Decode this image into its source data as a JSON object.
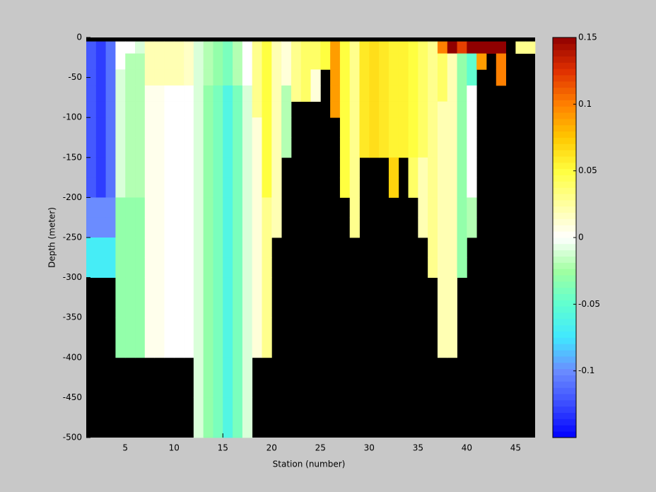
{
  "chart_data": {
    "type": "heatmap",
    "xlabel": "Station (number)",
    "ylabel": "Depth (meter)",
    "xlim": [
      1,
      47
    ],
    "ylim": [
      -500,
      0
    ],
    "xticks": [
      5,
      10,
      15,
      20,
      25,
      30,
      35,
      40,
      45
    ],
    "yticks": [
      0,
      -50,
      -100,
      -150,
      -200,
      -250,
      -300,
      -350,
      -400,
      -450,
      -500
    ],
    "clim": [
      -0.15,
      0.15
    ],
    "cticks": [
      -0.1,
      -0.05,
      0,
      0.05,
      0.1,
      0.15
    ],
    "colormap": [
      "#0000ff",
      "#3a4cff",
      "#6b8cff",
      "#40e8ff",
      "#60ffd0",
      "#a0ffa0",
      "#ffffff",
      "#ffffa0",
      "#ffff40",
      "#ffc800",
      "#ff8000",
      "#e03000",
      "#900000"
    ],
    "missing_color": "#000000",
    "x": [
      1,
      2,
      3,
      4,
      5,
      6,
      7,
      8,
      9,
      10,
      11,
      12,
      13,
      14,
      15,
      16,
      17,
      18,
      19,
      20,
      21,
      22,
      23,
      24,
      25,
      26,
      27,
      28,
      29,
      30,
      31,
      32,
      33,
      34,
      35,
      36,
      37,
      38,
      39,
      40,
      41,
      42,
      43,
      44,
      45,
      46,
      47
    ],
    "depth": [
      0,
      -5,
      -20,
      -40,
      -60,
      -80,
      -100,
      -125,
      -150,
      -175,
      -200,
      -225,
      -250,
      -275,
      -300,
      -350,
      -400,
      -450,
      -500
    ],
    "values": [
      [
        null,
        -0.12,
        -0.12,
        -0.12,
        -0.12,
        -0.12,
        -0.12,
        -0.12,
        -0.12,
        -0.12,
        -0.1,
        -0.1,
        -0.07,
        -0.07,
        null,
        null,
        null,
        null
      ],
      [
        null,
        -0.13,
        -0.13,
        -0.13,
        -0.13,
        -0.13,
        -0.13,
        -0.13,
        -0.13,
        -0.13,
        -0.1,
        -0.1,
        -0.07,
        -0.07,
        null,
        null,
        null,
        null
      ],
      [
        null,
        -0.11,
        -0.11,
        -0.11,
        -0.11,
        -0.11,
        -0.11,
        -0.11,
        -0.11,
        -0.11,
        -0.1,
        -0.1,
        -0.07,
        -0.07,
        null,
        null,
        null,
        null
      ],
      [
        null,
        0,
        0,
        -0.01,
        -0.01,
        -0.01,
        -0.01,
        -0.01,
        -0.01,
        -0.01,
        -0.03,
        -0.03,
        -0.03,
        -0.03,
        -0.03,
        -0.03,
        null,
        null
      ],
      [
        null,
        0,
        -0.02,
        -0.02,
        -0.02,
        -0.02,
        -0.02,
        -0.02,
        -0.02,
        -0.02,
        -0.03,
        -0.03,
        -0.03,
        -0.03,
        -0.03,
        -0.03,
        null,
        null
      ],
      [
        null,
        -0.01,
        -0.02,
        -0.02,
        -0.02,
        -0.02,
        -0.02,
        -0.02,
        -0.02,
        -0.02,
        -0.03,
        -0.03,
        -0.03,
        -0.03,
        -0.03,
        -0.03,
        null,
        null
      ],
      [
        null,
        0.02,
        0.02,
        0.02,
        0.005,
        0.005,
        0.005,
        0.005,
        0.005,
        0.005,
        0.005,
        0.005,
        0.005,
        0.005,
        0.005,
        0.005,
        null,
        null
      ],
      [
        null,
        0.02,
        0.02,
        0.02,
        0.005,
        0.005,
        0.005,
        0.005,
        0.005,
        0.005,
        0.005,
        0.005,
        0.005,
        0.005,
        0.005,
        0.005,
        null,
        null
      ],
      [
        null,
        0.02,
        0.02,
        0.02,
        0,
        0,
        0,
        0,
        0,
        0,
        0,
        0,
        0,
        0,
        0,
        0,
        null,
        null
      ],
      [
        null,
        0.02,
        0.02,
        0.02,
        0,
        0,
        0,
        0,
        0,
        0,
        0,
        0,
        0,
        0,
        0,
        0,
        null,
        null
      ],
      [
        null,
        0.015,
        0.015,
        0.015,
        0,
        0,
        0,
        0,
        0,
        0,
        0,
        0,
        0,
        0,
        0,
        0,
        null,
        null
      ],
      [
        null,
        -0.01,
        -0.01,
        -0.01,
        -0.01,
        -0.01,
        -0.01,
        -0.01,
        -0.01,
        -0.01,
        -0.01,
        -0.01,
        -0.01,
        -0.01,
        -0.01,
        -0.01,
        -0.01,
        -0.01
      ],
      [
        null,
        -0.02,
        -0.02,
        -0.02,
        -0.03,
        -0.03,
        -0.03,
        -0.03,
        -0.03,
        -0.03,
        -0.03,
        -0.03,
        -0.03,
        -0.03,
        -0.03,
        -0.03,
        -0.03,
        -0.03
      ],
      [
        null,
        -0.03,
        -0.03,
        -0.03,
        -0.04,
        -0.04,
        -0.04,
        -0.04,
        -0.04,
        -0.04,
        -0.04,
        -0.04,
        -0.04,
        -0.04,
        -0.04,
        -0.04,
        -0.04,
        -0.04
      ],
      [
        null,
        -0.04,
        -0.04,
        -0.04,
        -0.06,
        -0.06,
        -0.06,
        -0.06,
        -0.06,
        -0.06,
        -0.06,
        -0.06,
        -0.06,
        -0.06,
        -0.06,
        -0.06,
        -0.06,
        -0.06
      ],
      [
        null,
        -0.02,
        -0.02,
        -0.02,
        -0.04,
        -0.04,
        -0.04,
        -0.04,
        -0.04,
        -0.04,
        -0.04,
        -0.04,
        -0.04,
        -0.04,
        -0.04,
        -0.04,
        -0.04,
        -0.04
      ],
      [
        null,
        0,
        0,
        0,
        -0.01,
        -0.01,
        -0.01,
        -0.01,
        -0.01,
        -0.01,
        -0.01,
        -0.01,
        -0.01,
        -0.01,
        -0.01,
        -0.01,
        -0.01,
        -0.01
      ],
      [
        null,
        0.03,
        0.03,
        0.03,
        0.03,
        0.03,
        0.01,
        0.01,
        0.01,
        0.01,
        0.01,
        0.01,
        0.01,
        0.01,
        0.01,
        0.01,
        null,
        null
      ],
      [
        null,
        0.05,
        0.05,
        0.05,
        0.05,
        0.05,
        0.05,
        0.05,
        0.05,
        0.05,
        0.03,
        0.03,
        0.03,
        0.03,
        0.03,
        0.03,
        null,
        null
      ],
      [
        null,
        0.02,
        0.02,
        0.02,
        0.02,
        0.02,
        0.02,
        0.02,
        0.02,
        0.02,
        0.02,
        0.02,
        null,
        null,
        null,
        null,
        null,
        null
      ],
      [
        null,
        0.01,
        0.01,
        0.01,
        -0.02,
        -0.02,
        -0.02,
        -0.02,
        null,
        null,
        null,
        null,
        null,
        null,
        null,
        null,
        null,
        null
      ],
      [
        null,
        0.03,
        0.03,
        0.03,
        0.03,
        null,
        null,
        null,
        null,
        null,
        null,
        null,
        null,
        null,
        null,
        null,
        null,
        null
      ],
      [
        null,
        0.04,
        0.04,
        0.04,
        0.04,
        null,
        null,
        null,
        null,
        null,
        null,
        null,
        null,
        null,
        null,
        null,
        null,
        null
      ],
      [
        null,
        0.04,
        0.04,
        0.01,
        0.01,
        null,
        null,
        null,
        null,
        null,
        null,
        null,
        null,
        null,
        null,
        null,
        null,
        null
      ],
      [
        null,
        0.05,
        0.05,
        null,
        null,
        null,
        null,
        null,
        null,
        null,
        null,
        null,
        null,
        null,
        null,
        null,
        null,
        null
      ],
      [
        null,
        0.09,
        0.09,
        0.09,
        0.09,
        0.09,
        null,
        null,
        null,
        null,
        null,
        null,
        null,
        null,
        null,
        null,
        null,
        null
      ],
      [
        null,
        0.05,
        0.05,
        0.05,
        0.05,
        0.05,
        0.05,
        0.05,
        0.05,
        0.05,
        null,
        null,
        null,
        null,
        null,
        null,
        null,
        null
      ],
      [
        null,
        0.03,
        0.03,
        0.03,
        0.03,
        0.03,
        0.03,
        0.03,
        0.03,
        0.03,
        0.03,
        0.03,
        null,
        null,
        null,
        null,
        null,
        null
      ],
      [
        null,
        0.06,
        0.06,
        0.06,
        0.06,
        0.06,
        0.06,
        0.06,
        null,
        null,
        null,
        null,
        null,
        null,
        null,
        null,
        null,
        null
      ],
      [
        null,
        0.065,
        0.065,
        0.065,
        0.065,
        0.065,
        0.065,
        0.065,
        null,
        null,
        null,
        null,
        null,
        null,
        null,
        null,
        null,
        null
      ],
      [
        null,
        0.06,
        0.06,
        0.06,
        0.06,
        0.06,
        0.06,
        0.06,
        null,
        null,
        null,
        null,
        null,
        null,
        null,
        null,
        null,
        null
      ],
      [
        null,
        0.055,
        0.055,
        0.055,
        0.055,
        0.055,
        0.055,
        0.055,
        0.07,
        0.07,
        null,
        null,
        null,
        null,
        null,
        null,
        null,
        null
      ],
      [
        null,
        0.055,
        0.055,
        0.055,
        0.055,
        0.055,
        0.055,
        0.055,
        null,
        null,
        null,
        null,
        null,
        null,
        null,
        null,
        null,
        null
      ],
      [
        null,
        0.05,
        0.05,
        0.05,
        0.05,
        0.05,
        0.05,
        0.05,
        0.04,
        0.04,
        null,
        null,
        null,
        null,
        null,
        null,
        null,
        null
      ],
      [
        null,
        0.04,
        0.04,
        0.04,
        0.04,
        0.04,
        0.04,
        0.04,
        0.02,
        0.02,
        0.02,
        0.02,
        null,
        null,
        null,
        null,
        null,
        null
      ],
      [
        null,
        0.03,
        0.03,
        0.03,
        0.03,
        0.03,
        0.03,
        0.03,
        0.03,
        0.03,
        0.03,
        0.03,
        0.03,
        0.03,
        null,
        null,
        null,
        null
      ],
      [
        null,
        0.1,
        0.04,
        0.04,
        0.04,
        0.02,
        0.02,
        0.02,
        0.02,
        0.02,
        0.02,
        0.02,
        0.02,
        0.02,
        0.02,
        0.02,
        null,
        null
      ],
      [
        null,
        0.15,
        0.02,
        0.02,
        0.02,
        0.02,
        0.02,
        0.02,
        0.02,
        0.02,
        0.02,
        0.02,
        0.02,
        0.02,
        0.02,
        0.02,
        null,
        null
      ],
      [
        null,
        0.12,
        -0.03,
        -0.03,
        -0.03,
        -0.03,
        -0.03,
        -0.03,
        -0.03,
        -0.03,
        -0.03,
        -0.03,
        -0.03,
        -0.03,
        null,
        null,
        null,
        null
      ],
      [
        null,
        0.15,
        -0.05,
        -0.05,
        0,
        0,
        0,
        0,
        0,
        0,
        -0.02,
        -0.02,
        null,
        null,
        null,
        null,
        null,
        null
      ],
      [
        null,
        0.15,
        0.09,
        null,
        null,
        null,
        null,
        null,
        null,
        null,
        null,
        null,
        null,
        null,
        null,
        null,
        null,
        null
      ],
      [
        null,
        0.15,
        null,
        null,
        null,
        null,
        null,
        null,
        null,
        null,
        null,
        null,
        null,
        null,
        null,
        null,
        null,
        null
      ],
      [
        null,
        0.15,
        0.1,
        0.1,
        null,
        null,
        null,
        null,
        null,
        null,
        null,
        null,
        null,
        null,
        null,
        null,
        null,
        null
      ],
      [
        null,
        null,
        null,
        null,
        null,
        null,
        null,
        null,
        null,
        null,
        null,
        null,
        null,
        null,
        null,
        null,
        null,
        null
      ],
      [
        null,
        0.03,
        null,
        null,
        null,
        null,
        null,
        null,
        null,
        null,
        null,
        null,
        null,
        null,
        null,
        null,
        null,
        null
      ],
      [
        null,
        0.03,
        null,
        null,
        null,
        null,
        null,
        null,
        null,
        null,
        null,
        null,
        null,
        null,
        null,
        null,
        null,
        null
      ]
    ]
  }
}
